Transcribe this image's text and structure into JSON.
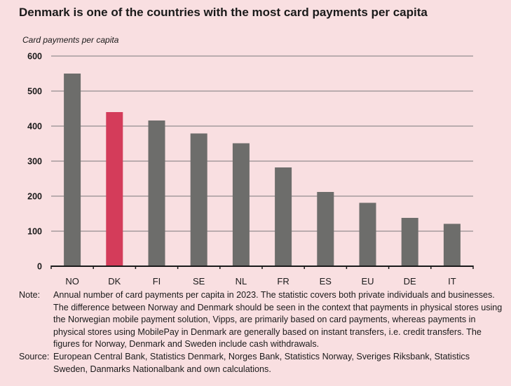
{
  "title": "Denmark is one of the countries with the most card payments per capita",
  "chart_data": {
    "type": "bar",
    "title": "Denmark is one of the countries with the most card payments per capita",
    "ylabel": "Card payments per capita",
    "xlabel": "",
    "categories": [
      "NO",
      "DK",
      "FI",
      "SE",
      "NL",
      "FR",
      "ES",
      "EU",
      "DE",
      "IT"
    ],
    "values": [
      550,
      440,
      416,
      379,
      351,
      282,
      212,
      181,
      138,
      121
    ],
    "ylim": [
      0,
      600
    ],
    "yticks": [
      "0",
      "100",
      "200",
      "300",
      "400",
      "500",
      "600"
    ],
    "highlight_category": "DK",
    "grid": true,
    "colors": {
      "bar": "#6d6d6b",
      "highlight": "#d43c5a",
      "grid": "#7a7a7a",
      "axis": "#1a1a1a"
    }
  },
  "note": {
    "label": "Note:",
    "text": "Annual number of card payments per capita in 2023. The statistic covers both private individuals and businesses. The difference between Norway and Denmark should be seen in the context that payments in physical stores using the Norwegian mobile payment solution, Vipps, are primarily based on card payments, whereas payments in physical stores using MobilePay in Denmark are generally based on instant transfers, i.e. credit transfers. The figures for Norway, Denmark and Sweden include cash withdrawals."
  },
  "source": {
    "label": "Source:",
    "text": "European Central Bank, Statistics Denmark, Norges Bank, Statistics Norway, Sveriges Riksbank, Statistics Sweden, Danmarks Nationalbank and own calculations."
  }
}
